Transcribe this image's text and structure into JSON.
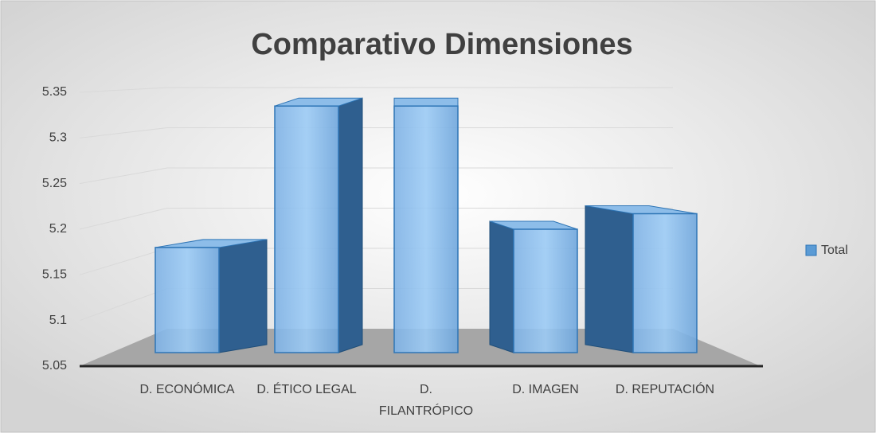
{
  "chart_data": {
    "type": "bar",
    "title": "Comparativo Dimensiones",
    "categories": [
      "D. ECONÓMICA",
      "D. ÉTICO LEGAL",
      "D. FILANTRÓPICO",
      "D. IMAGEN",
      "D. REPUTACIÓN"
    ],
    "series": [
      {
        "name": "Total",
        "color": "#5b9bd5",
        "values": [
          5.18,
          5.335,
          5.335,
          5.2,
          5.217
        ]
      }
    ],
    "ylim": [
      5.05,
      5.35
    ],
    "yticks": [
      5.05,
      5.1,
      5.15,
      5.2,
      5.25,
      5.3,
      5.35
    ],
    "grid": true,
    "legend": "right"
  }
}
